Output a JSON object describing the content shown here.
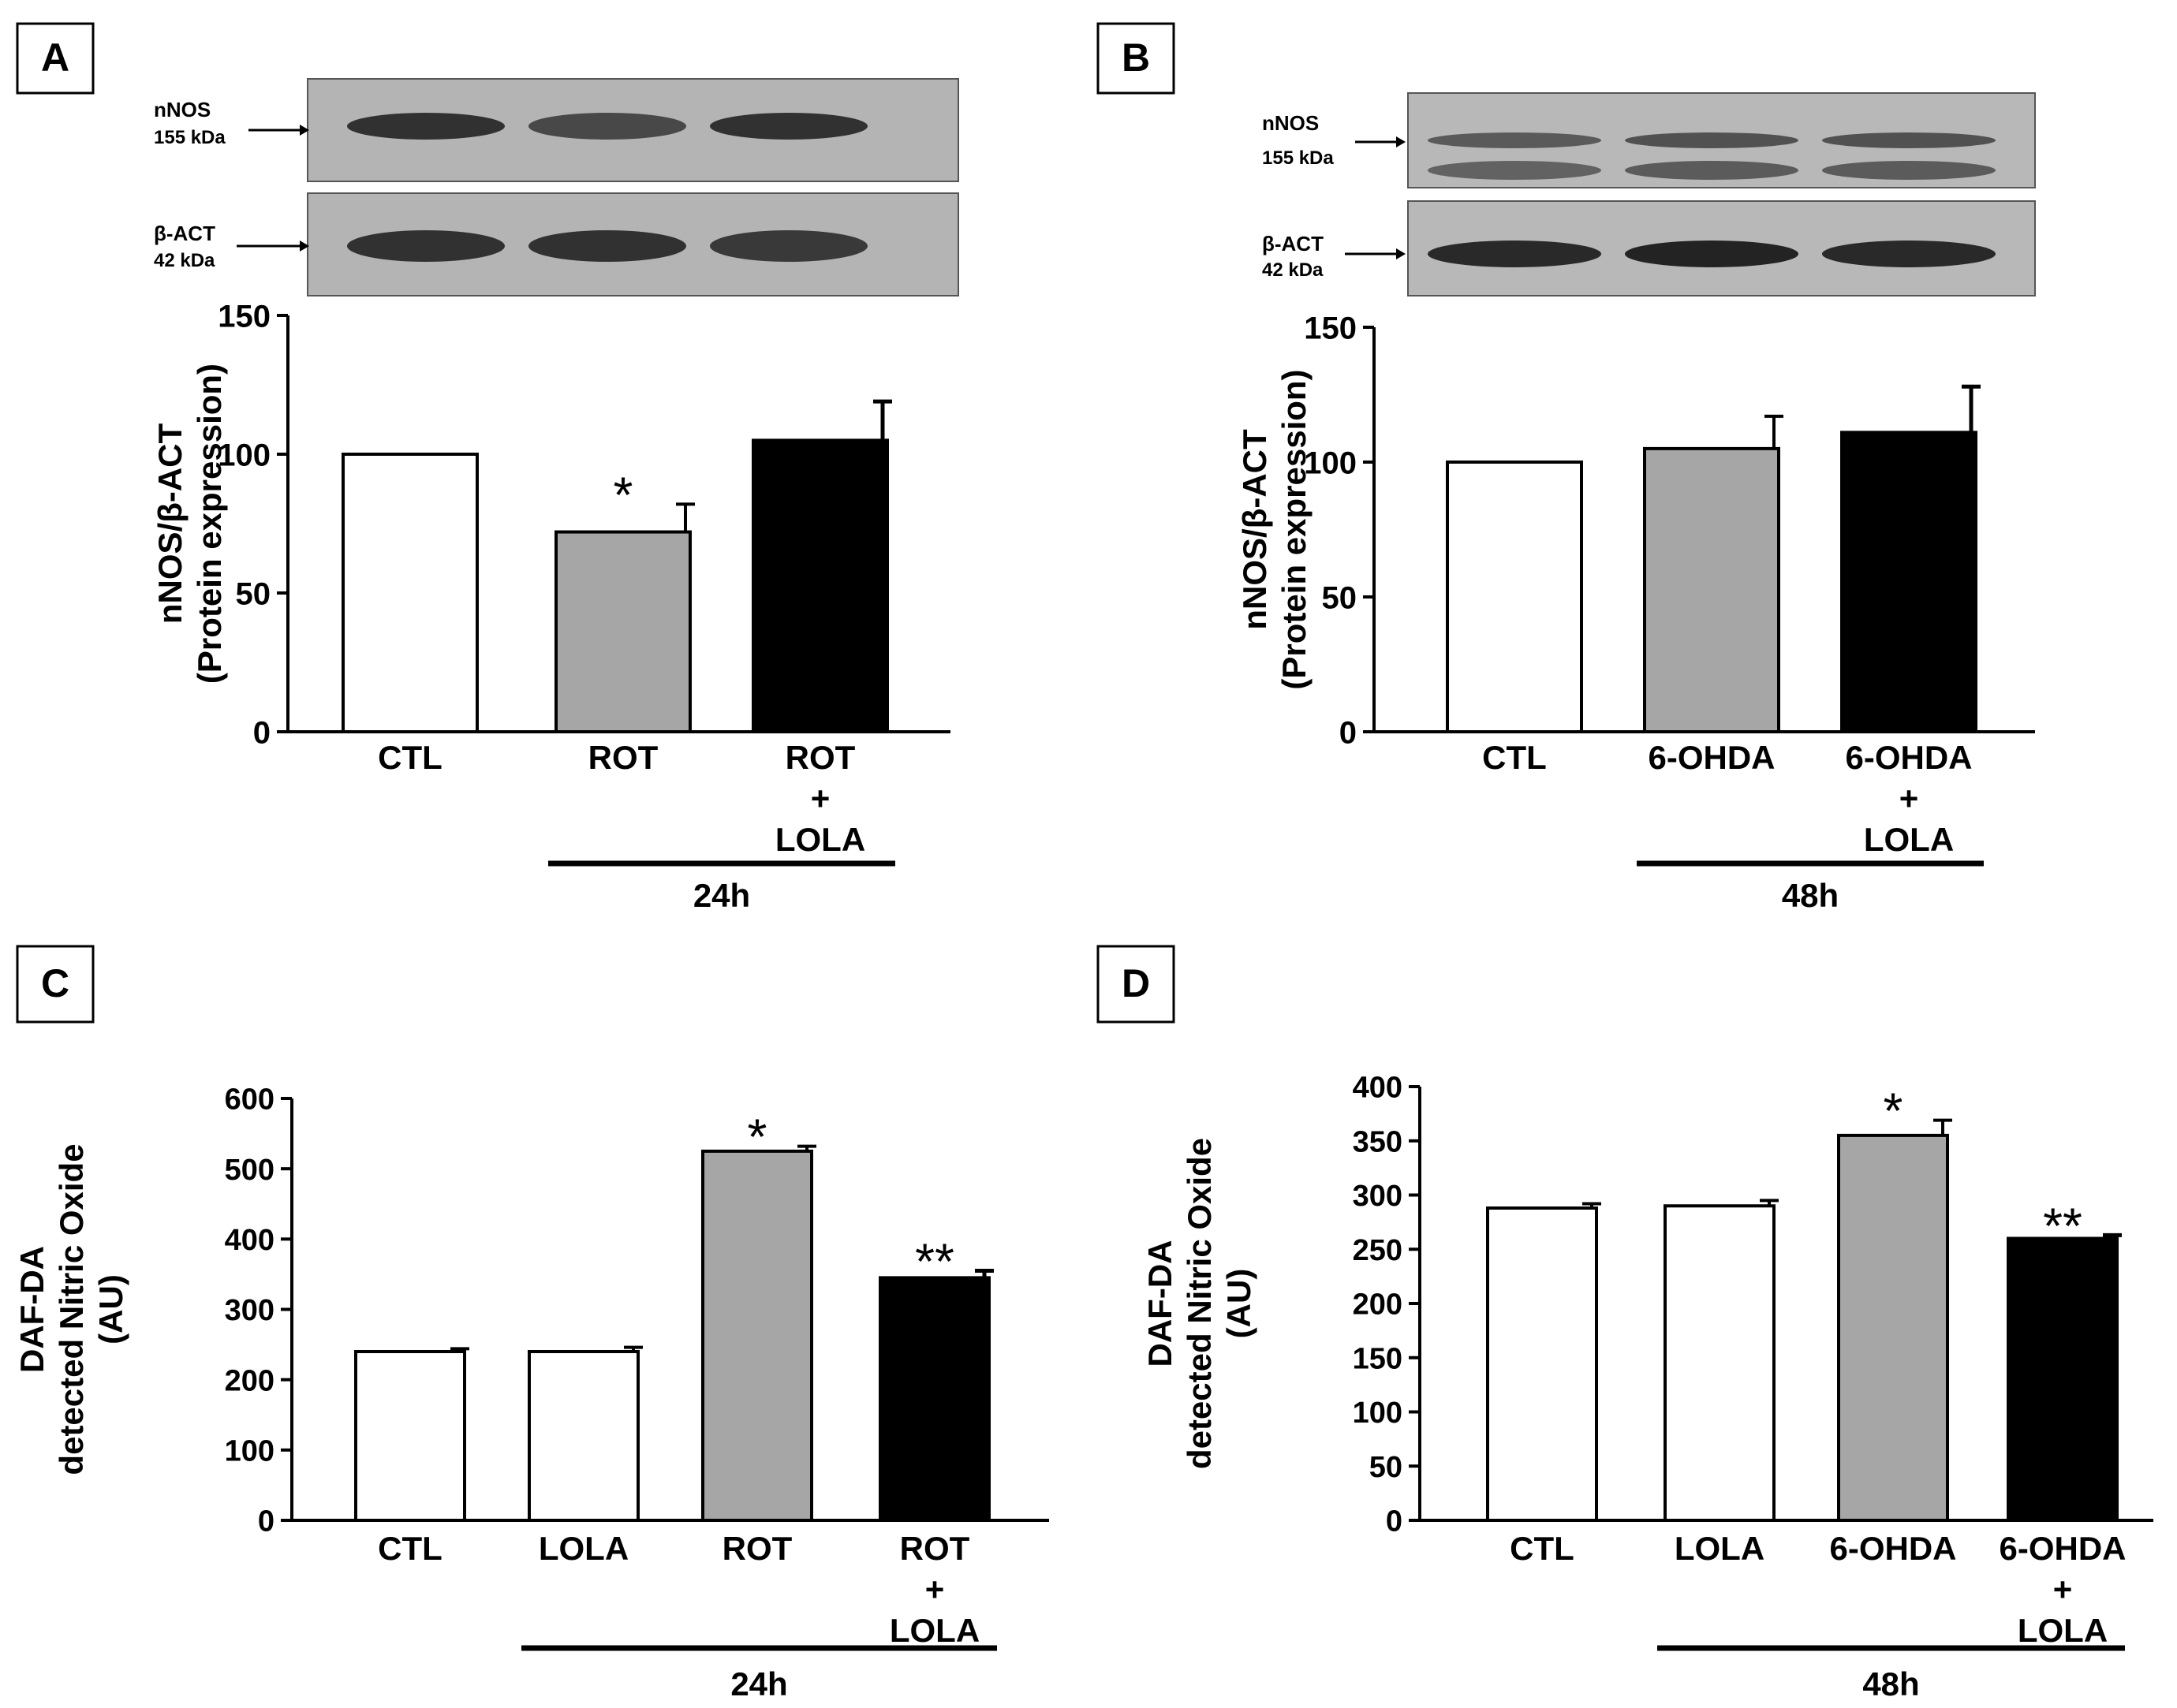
{
  "panels": {
    "A": {
      "letter": "A"
    },
    "B": {
      "letter": "B"
    },
    "C": {
      "letter": "C"
    },
    "D": {
      "letter": "D"
    }
  },
  "blots": {
    "A": {
      "bands": [
        {
          "name": "nNOS",
          "size": "155 kDa",
          "intensities": [
            0.85,
            0.7,
            0.85
          ]
        },
        {
          "name": "β-ACT",
          "size": "42 kDa",
          "intensities": [
            0.85,
            0.85,
            0.8
          ]
        }
      ]
    },
    "B": {
      "bands": [
        {
          "name": "nNOS",
          "size": "155 kDa",
          "intensities": [
            0.6,
            0.65,
            0.65
          ]
        },
        {
          "name": "β-ACT",
          "size": "42 kDa",
          "intensities": [
            0.9,
            0.95,
            0.9
          ]
        }
      ]
    }
  },
  "chart_data": [
    {
      "panel": "A",
      "type": "bar",
      "categories": [
        [
          "CTL"
        ],
        [
          "ROT"
        ],
        [
          "ROT",
          "+",
          "LOLA"
        ]
      ],
      "values": [
        100,
        72,
        105
      ],
      "errors": [
        0,
        10,
        14
      ],
      "colors": [
        "#ffffff",
        "#a6a6a6",
        "#000000"
      ],
      "annotations": [
        "",
        "*",
        ""
      ],
      "ylabel": [
        "nNOS/β-ACT",
        "(Protein expression)"
      ],
      "yticks": [
        0,
        50,
        100,
        150
      ],
      "ylim": [
        0,
        150
      ],
      "group_label": "24h",
      "group_span": [
        1,
        2
      ]
    },
    {
      "panel": "B",
      "type": "bar",
      "categories": [
        [
          "CTL"
        ],
        [
          "6-OHDA"
        ],
        [
          "6-OHDA",
          "+",
          "LOLA"
        ]
      ],
      "values": [
        100,
        105,
        111
      ],
      "errors": [
        0,
        12,
        17
      ],
      "colors": [
        "#ffffff",
        "#a6a6a6",
        "#000000"
      ],
      "annotations": [
        "",
        "",
        ""
      ],
      "ylabel": [
        "nNOS/β-ACT",
        "(Protein expression)"
      ],
      "yticks": [
        0,
        50,
        100,
        150
      ],
      "ylim": [
        0,
        150
      ],
      "group_label": "48h",
      "group_span": [
        1,
        2
      ]
    },
    {
      "panel": "C",
      "type": "bar",
      "categories": [
        [
          "CTL"
        ],
        [
          "LOLA"
        ],
        [
          "ROT"
        ],
        [
          "ROT",
          "+",
          "LOLA"
        ]
      ],
      "values": [
        240,
        240,
        525,
        345
      ],
      "errors": [
        4,
        6,
        7,
        10
      ],
      "colors": [
        "#ffffff",
        "#ffffff",
        "#a6a6a6",
        "#000000"
      ],
      "annotations": [
        "",
        "",
        "*",
        "**"
      ],
      "ylabel": [
        "DAF-DA",
        "detected Nitric Oxide",
        "(AU)"
      ],
      "yticks": [
        0,
        100,
        200,
        300,
        400,
        500,
        600
      ],
      "ylim": [
        0,
        600
      ],
      "group_label": "24h",
      "group_span": [
        1,
        3
      ]
    },
    {
      "panel": "D",
      "type": "bar",
      "categories": [
        [
          "CTL"
        ],
        [
          "LOLA"
        ],
        [
          "6-OHDA"
        ],
        [
          "6-OHDA",
          "+",
          "LOLA"
        ]
      ],
      "values": [
        288,
        290,
        355,
        260
      ],
      "errors": [
        4,
        5,
        14,
        3
      ],
      "colors": [
        "#ffffff",
        "#ffffff",
        "#a6a6a6",
        "#000000"
      ],
      "annotations": [
        "",
        "",
        "*",
        "**"
      ],
      "ylabel": [
        "DAF-DA",
        "detected Nitric Oxide",
        "(AU)"
      ],
      "yticks": [
        0,
        50,
        100,
        150,
        200,
        250,
        300,
        350,
        400
      ],
      "ylim": [
        0,
        400
      ],
      "group_label": "48h",
      "group_span": [
        1,
        3
      ]
    }
  ]
}
